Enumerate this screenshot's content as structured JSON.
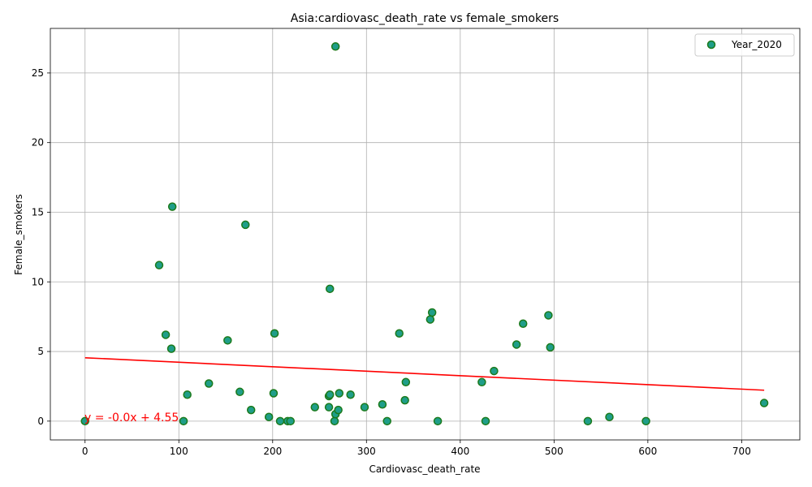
{
  "chart_data": {
    "type": "scatter",
    "title": "Asia:cardiovasc_death_rate vs female_smokers",
    "xlabel": "Cardiovasc_death_rate",
    "ylabel": "Female_smokers",
    "xlim": [
      -37,
      762
    ],
    "ylim": [
      -1.35,
      28.2
    ],
    "xticks": [
      0,
      100,
      200,
      300,
      400,
      500,
      600,
      700
    ],
    "yticks": [
      0,
      5,
      10,
      15,
      20,
      25
    ],
    "grid": true,
    "legend_placement": "top-right",
    "series": [
      {
        "name": "Year_2020",
        "marker_fill": "#1f9e89",
        "marker_edge": "#1b7a1b",
        "points": [
          [
            0,
            0
          ],
          [
            79,
            11.2
          ],
          [
            86,
            6.2
          ],
          [
            92,
            5.2
          ],
          [
            93,
            15.4
          ],
          [
            105,
            0
          ],
          [
            109,
            1.9
          ],
          [
            132,
            2.7
          ],
          [
            152,
            5.8
          ],
          [
            165,
            2.1
          ],
          [
            171,
            14.1
          ],
          [
            177,
            0.8
          ],
          [
            196,
            0.3
          ],
          [
            201,
            2.0
          ],
          [
            202,
            6.3
          ],
          [
            208,
            0
          ],
          [
            216,
            0
          ],
          [
            219,
            0
          ],
          [
            245,
            1.0
          ],
          [
            260,
            1.0
          ],
          [
            260,
            1.8
          ],
          [
            261,
            1.9
          ],
          [
            261,
            9.5
          ],
          [
            266,
            0
          ],
          [
            267,
            0.5
          ],
          [
            267,
            26.9
          ],
          [
            270,
            0.8
          ],
          [
            271,
            2.0
          ],
          [
            283,
            1.9
          ],
          [
            298,
            1.0
          ],
          [
            317,
            1.2
          ],
          [
            322,
            0
          ],
          [
            335,
            6.3
          ],
          [
            341,
            1.5
          ],
          [
            342,
            2.8
          ],
          [
            368,
            7.3
          ],
          [
            370,
            7.8
          ],
          [
            376,
            0
          ],
          [
            423,
            2.8
          ],
          [
            427,
            0
          ],
          [
            436,
            3.6
          ],
          [
            460,
            5.5
          ],
          [
            467,
            7.0
          ],
          [
            494,
            7.6
          ],
          [
            496,
            5.3
          ],
          [
            536,
            0
          ],
          [
            559,
            0.3
          ],
          [
            598,
            0
          ],
          [
            724,
            1.3
          ]
        ]
      }
    ],
    "fit_line": {
      "color": "#ff0000",
      "x": [
        0,
        724
      ],
      "y": [
        4.55,
        2.22
      ],
      "label": "y = -0.0x + 4.55"
    }
  }
}
